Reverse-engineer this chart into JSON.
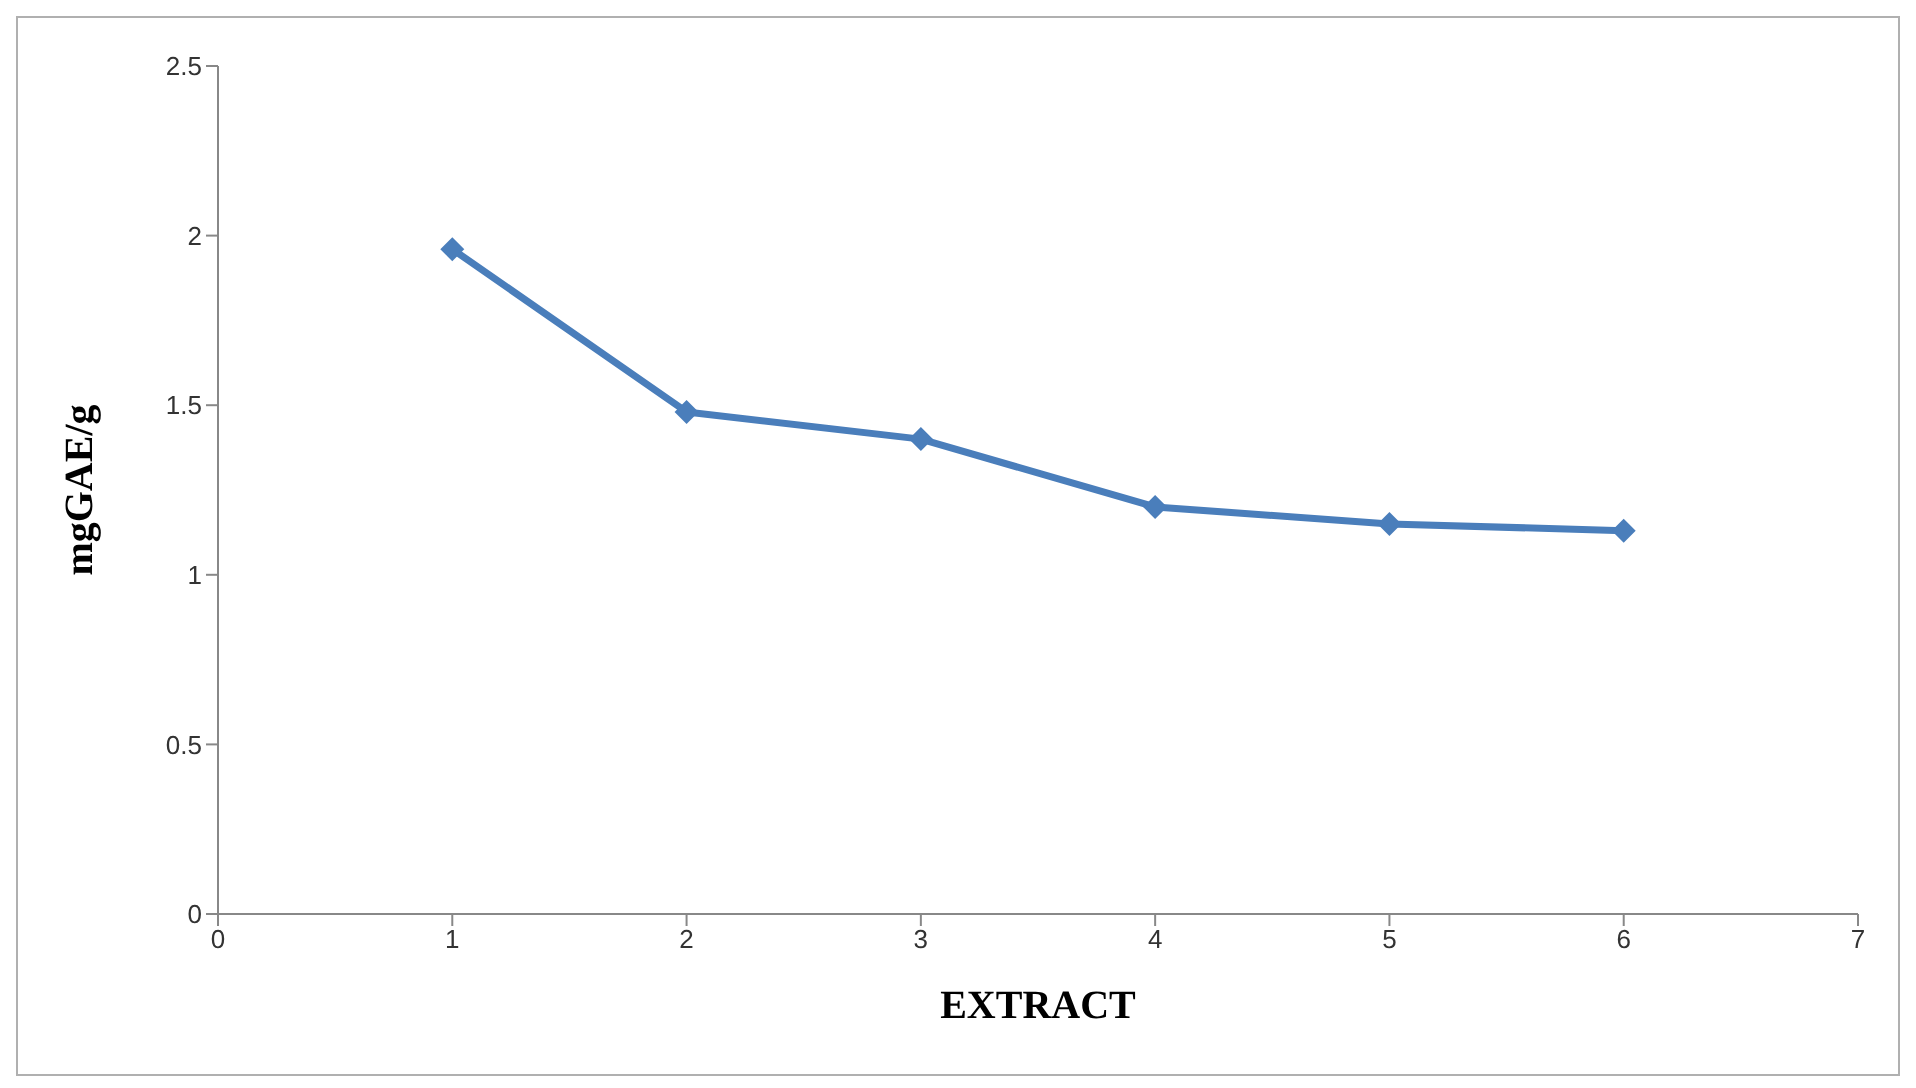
{
  "chart_data": {
    "type": "line",
    "xlabel": "EXTRACT",
    "ylabel": "mgGAE/g",
    "x": [
      1,
      2,
      3,
      4,
      5,
      6
    ],
    "series": [
      {
        "color": "#4a7ebb",
        "values": [
          1.96,
          1.48,
          1.4,
          1.2,
          1.15,
          1.13
        ]
      }
    ],
    "xlim": [
      0,
      7
    ],
    "xticks": [
      0,
      1,
      2,
      3,
      4,
      5,
      6,
      7
    ],
    "ylim": [
      0,
      2.5
    ],
    "yticks": [
      0,
      0.5,
      1,
      1.5,
      2,
      2.5
    ],
    "grid": false,
    "marker": "diamond",
    "line_style": "solid"
  }
}
